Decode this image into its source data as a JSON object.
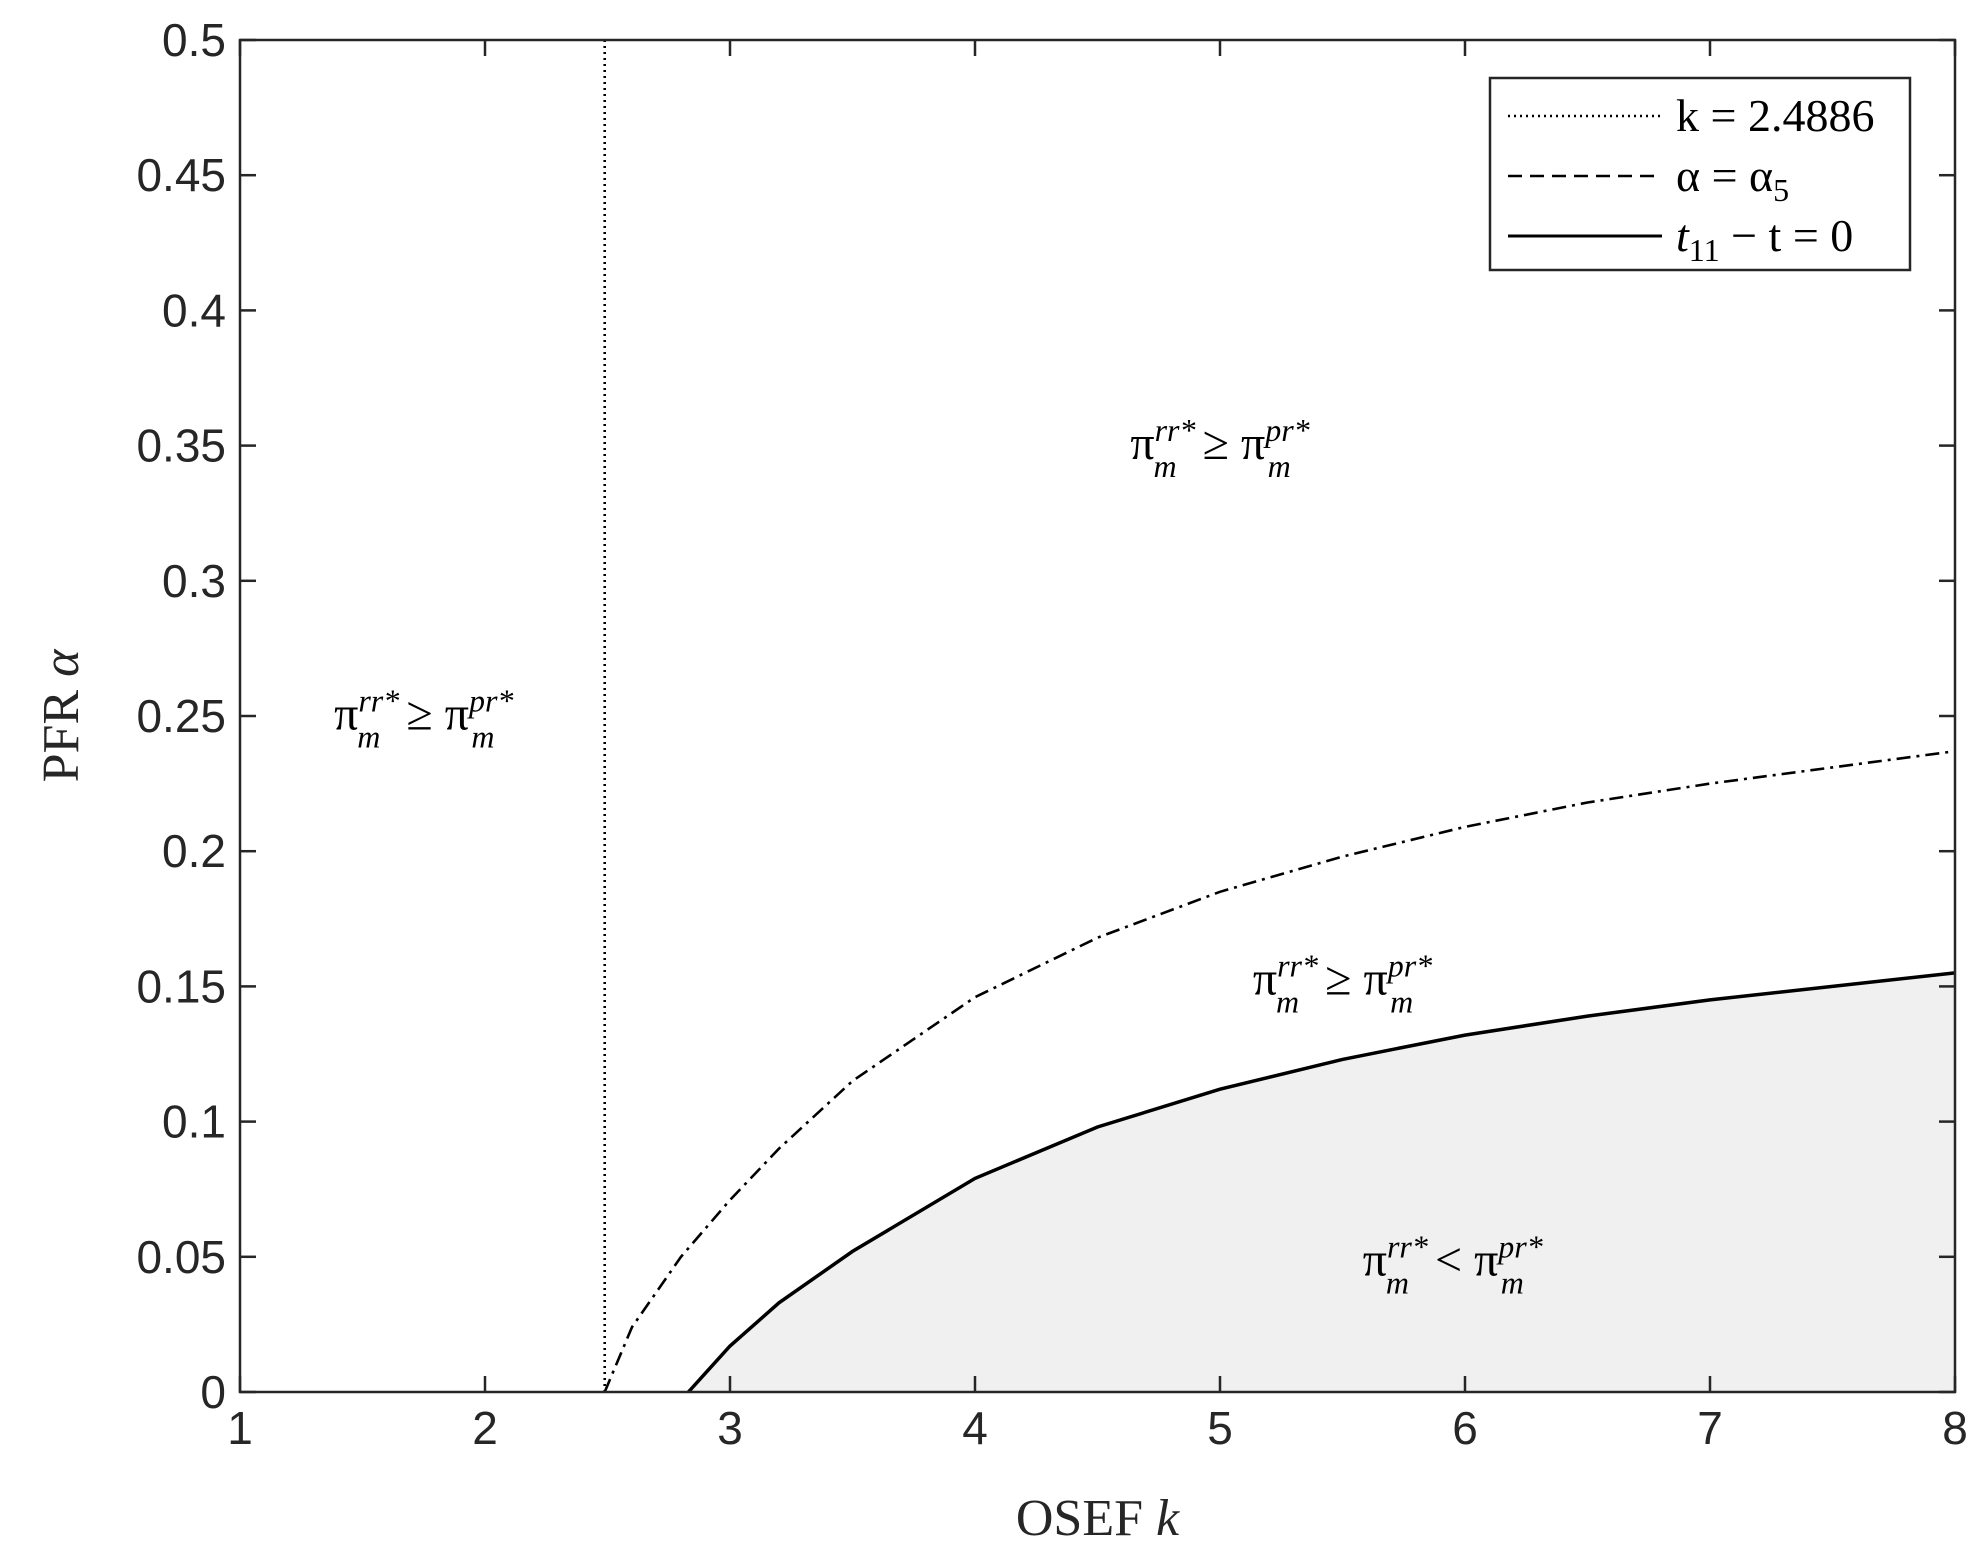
{
  "chart_data": {
    "type": "line",
    "title": "",
    "xlabel": {
      "text": "OSEF",
      "var": "k"
    },
    "ylabel": {
      "text": "PFR",
      "var": "α"
    },
    "xlim": [
      1,
      8
    ],
    "ylim": [
      0,
      0.5
    ],
    "xticks": [
      1,
      2,
      3,
      4,
      5,
      6,
      7,
      8
    ],
    "xtick_labels": [
      "1",
      "2",
      "3",
      "4",
      "5",
      "6",
      "7",
      "8"
    ],
    "yticks": [
      0,
      0.05,
      0.1,
      0.15,
      0.2,
      0.25,
      0.3,
      0.35,
      0.4,
      0.45,
      0.5
    ],
    "ytick_labels": [
      "0",
      "0.05",
      "0.1",
      "0.15",
      "0.2",
      "0.25",
      "0.3",
      "0.35",
      "0.4",
      "0.45",
      "0.5"
    ],
    "grid": false,
    "legend_position": "top-right",
    "shaded_region_color": "#f0f0f0",
    "series": [
      {
        "id": "vline",
        "legend": {
          "main": "k = 2.4886"
        },
        "style": "dotted",
        "x": [
          2.4886,
          2.4886
        ],
        "y": [
          0,
          0.5
        ]
      },
      {
        "id": "alpha5",
        "legend": {
          "main": "α = α",
          "sub": "5"
        },
        "style": "dashdot",
        "x": [
          2.4886,
          2.6,
          2.8,
          3.0,
          3.2,
          3.5,
          4.0,
          4.5,
          5.0,
          5.5,
          6.0,
          6.5,
          7.0,
          7.5,
          8.0
        ],
        "y": [
          0,
          0.024,
          0.05,
          0.071,
          0.09,
          0.115,
          0.146,
          0.168,
          0.185,
          0.198,
          0.209,
          0.218,
          0.225,
          0.231,
          0.237
        ]
      },
      {
        "id": "t11",
        "legend": {
          "pre": "t",
          "sub": "11",
          "main": " − t = 0"
        },
        "style": "solid",
        "x": [
          2.83,
          2.9,
          3.0,
          3.2,
          3.5,
          4.0,
          4.5,
          5.0,
          5.5,
          6.0,
          6.5,
          7.0,
          7.5,
          8.0
        ],
        "y": [
          0,
          0.007,
          0.017,
          0.033,
          0.052,
          0.079,
          0.098,
          0.112,
          0.123,
          0.132,
          0.139,
          0.145,
          0.15,
          0.155
        ]
      }
    ],
    "annotations": [
      {
        "id": "left",
        "x": 1.75,
        "y": 0.245,
        "relation": "≥"
      },
      {
        "id": "top",
        "x": 5.0,
        "y": 0.345,
        "relation": "≥"
      },
      {
        "id": "mid",
        "x": 5.5,
        "y": 0.147,
        "relation": "≥"
      },
      {
        "id": "low",
        "x": 5.95,
        "y": 0.043,
        "relation": "<"
      }
    ],
    "region_symbols": {
      "pi": "π",
      "sub": "m",
      "sup_left": "rr*",
      "sup_right": "pr*"
    }
  }
}
